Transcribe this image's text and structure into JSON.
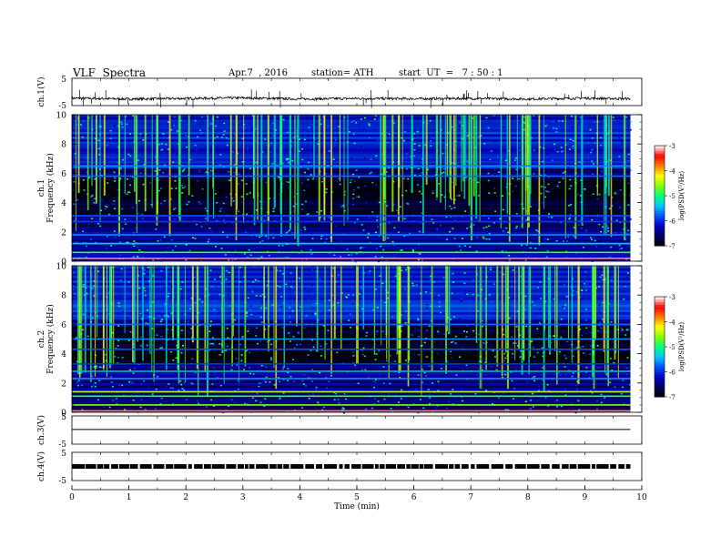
{
  "header": {
    "title": "VLF  Spectra",
    "date": "Apr.7  , 2016",
    "station": "station= ATH",
    "start": "start  UT  =   7 : 50 : 1"
  },
  "chart_data": [
    {
      "type": "line",
      "panel": "ch1-waveform",
      "ylabel": "ch.1(V)",
      "ylim": [
        -5,
        5
      ],
      "y_ticks": [
        "5",
        "-5"
      ],
      "baseline": -2.5,
      "x": [
        0,
        1,
        2,
        3,
        4,
        5,
        6,
        7,
        8,
        9,
        9.8
      ],
      "values": [
        -2.3,
        -2.6,
        -2.4,
        -2.2,
        -2.6,
        -2.4,
        -2.5,
        -2.4,
        -2.6,
        -2.3,
        -2.5
      ],
      "color": "#000000"
    },
    {
      "type": "heatmap",
      "panel": "ch1-spectrogram",
      "ylabel": "ch.1\nFrequency  (kHz)",
      "ylim": [
        0,
        10
      ],
      "y_ticks": [
        "0",
        "2",
        "4",
        "6",
        "8",
        "10"
      ],
      "colorbar": {
        "label": "log(PSD(V²/Hz)",
        "ticks": [
          "-3",
          "-4",
          "-5",
          "-6",
          "-7"
        ],
        "range": [
          -7,
          -3
        ]
      },
      "x_range": [
        0,
        9.8
      ],
      "bands_khz": [
        {
          "f": 0.2,
          "level": -3.2
        },
        {
          "f": 0.6,
          "level": -4.8
        },
        {
          "f": 1.2,
          "level": -5.4
        },
        {
          "f": 1.8,
          "level": -5.6
        },
        {
          "f": 2.7,
          "level": -5.9
        },
        {
          "f": 3.1,
          "level": -5.8
        },
        {
          "f": 5.8,
          "level": -5.7
        },
        {
          "f": 6.5,
          "level": -5.6
        }
      ]
    },
    {
      "type": "heatmap",
      "panel": "ch2-spectrogram",
      "ylabel": "ch.2\nFrequency  (kHz)",
      "ylim": [
        0,
        10
      ],
      "y_ticks": [
        "0",
        "2",
        "4",
        "6",
        "8",
        "10"
      ],
      "colorbar": {
        "label": "log(PSD(V²/Hz)",
        "ticks": [
          "-3",
          "-4",
          "-5",
          "-6",
          "-7"
        ],
        "range": [
          -7,
          -3
        ]
      },
      "x_range": [
        0,
        9.8
      ],
      "bands_khz": [
        {
          "f": 0.1,
          "level": -3.2
        },
        {
          "f": 0.5,
          "level": -4.6
        },
        {
          "f": 1.1,
          "level": -4.8
        },
        {
          "f": 1.4,
          "level": -4.4
        },
        {
          "f": 2.3,
          "level": -5.6
        },
        {
          "f": 2.8,
          "level": -5.5
        },
        {
          "f": 3.3,
          "level": -5.9
        },
        {
          "f": 4.3,
          "level": -5.8
        },
        {
          "f": 5.0,
          "level": -5.6
        },
        {
          "f": 6.0,
          "level": -5.7
        }
      ]
    },
    {
      "type": "line",
      "panel": "ch3-waveform",
      "ylabel": "ch.3(V)",
      "ylim": [
        -5,
        5
      ],
      "y_ticks": [
        "5",
        "-5"
      ],
      "baseline": 0.2,
      "x": [
        0,
        9.8
      ],
      "values": [
        0.2,
        0.2
      ],
      "color": "#000000"
    },
    {
      "type": "line",
      "panel": "ch4-waveform",
      "ylabel": "ch.4(V)",
      "ylim": [
        -5,
        5
      ],
      "y_ticks": [
        "5",
        "-5"
      ],
      "baseline": 0,
      "x": [
        0,
        9.8
      ],
      "values": [
        0,
        0
      ],
      "color": "#000000"
    }
  ],
  "x_axis": {
    "label": "Time  (min)",
    "ticks": [
      "0",
      "1",
      "2",
      "3",
      "4",
      "5",
      "6",
      "7",
      "8",
      "9",
      "10"
    ],
    "xlim": [
      0,
      10
    ]
  },
  "colors": {
    "cmap": [
      "#000000",
      "#000060",
      "#0000c8",
      "#0050ff",
      "#00c8ff",
      "#00ff80",
      "#80ff00",
      "#ffff00",
      "#ff8000",
      "#ff0000",
      "#ffffff"
    ]
  }
}
